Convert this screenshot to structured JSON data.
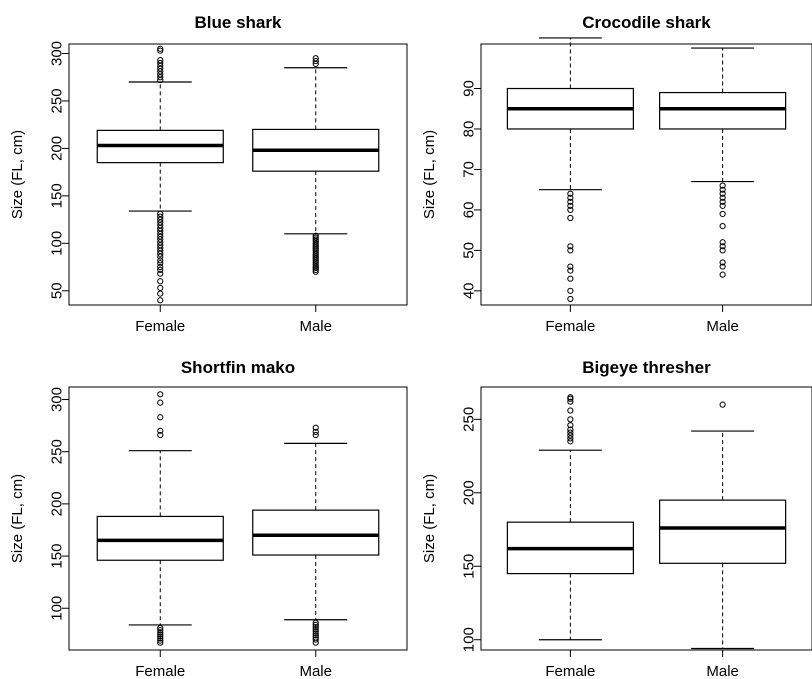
{
  "chart_data": [
    {
      "type": "boxplot",
      "title": "Blue shark",
      "ylabel": "Size (FL, cm)",
      "categories": [
        "Female",
        "Male"
      ],
      "ylim": [
        35,
        310
      ],
      "yticks": [
        50,
        100,
        150,
        200,
        250,
        300
      ],
      "boxes": [
        {
          "name": "Female",
          "whisker_low": 134,
          "q1": 185,
          "median": 203,
          "q3": 219,
          "whisker_high": 270,
          "outliers": [
            40,
            47,
            53,
            60,
            68,
            72,
            75,
            79,
            82,
            86,
            89,
            92,
            95,
            98,
            101,
            104,
            107,
            110,
            113,
            116,
            119,
            122,
            125,
            128,
            131,
            272,
            275,
            278,
            281,
            284,
            287,
            290,
            293,
            303,
            305
          ]
        },
        {
          "name": "Male",
          "whisker_low": 110,
          "q1": 176,
          "median": 198,
          "q3": 220,
          "whisker_high": 285,
          "outliers": [
            70,
            72,
            74,
            76,
            78,
            80,
            82,
            84,
            86,
            88,
            90,
            92,
            94,
            96,
            98,
            100,
            102,
            104,
            106,
            108,
            289,
            292,
            295
          ]
        }
      ]
    },
    {
      "type": "boxplot",
      "title": "Crocodile shark",
      "ylabel": "Size (FL, cm)",
      "categories": [
        "Female",
        "Male"
      ],
      "ylim": [
        36.5,
        101
      ],
      "yticks": [
        40,
        50,
        60,
        70,
        80,
        90
      ],
      "boxes": [
        {
          "name": "Female",
          "whisker_low": 65,
          "q1": 80,
          "median": 85,
          "q3": 90,
          "whisker_high": 102.5,
          "outliers": [
            38,
            40,
            43,
            45,
            46,
            50,
            51,
            58,
            60,
            61,
            62,
            63,
            64
          ]
        },
        {
          "name": "Male",
          "whisker_low": 67,
          "q1": 80,
          "median": 85,
          "q3": 89,
          "whisker_high": 100,
          "outliers": [
            44,
            46,
            47,
            50,
            51,
            52,
            56,
            59,
            61,
            62,
            63,
            64,
            65,
            66
          ]
        }
      ]
    },
    {
      "type": "boxplot",
      "title": "Shortfin mako",
      "ylabel": "Size (FL, cm)",
      "categories": [
        "Female",
        "Male"
      ],
      "ylim": [
        60,
        312
      ],
      "yticks": [
        100,
        150,
        200,
        250,
        300
      ],
      "boxes": [
        {
          "name": "Female",
          "whisker_low": 84,
          "q1": 146,
          "median": 165,
          "q3": 188,
          "whisker_high": 251,
          "outliers": [
            67,
            69,
            71,
            73,
            75,
            77,
            79,
            81,
            266,
            270,
            283,
            297,
            305
          ]
        },
        {
          "name": "Male",
          "whisker_low": 89,
          "q1": 151,
          "median": 170,
          "q3": 194,
          "whisker_high": 258,
          "outliers": [
            67,
            70,
            72,
            74,
            76,
            78,
            80,
            82,
            84,
            86,
            266,
            269,
            273
          ]
        }
      ]
    },
    {
      "type": "boxplot",
      "title": "Bigeye thresher",
      "ylabel": "Size (FL, cm)",
      "categories": [
        "Female",
        "Male"
      ],
      "ylim": [
        93,
        272
      ],
      "yticks": [
        100,
        150,
        200,
        250
      ],
      "boxes": [
        {
          "name": "Female",
          "whisker_low": 100,
          "q1": 145,
          "median": 162,
          "q3": 180,
          "whisker_high": 229,
          "outliers": [
            235,
            237,
            239,
            241,
            243,
            246,
            250,
            256,
            262,
            264,
            265
          ]
        },
        {
          "name": "Male",
          "whisker_low": 94,
          "q1": 152,
          "median": 176,
          "q3": 195,
          "whisker_high": 242,
          "outliers": [
            260
          ]
        }
      ]
    }
  ]
}
